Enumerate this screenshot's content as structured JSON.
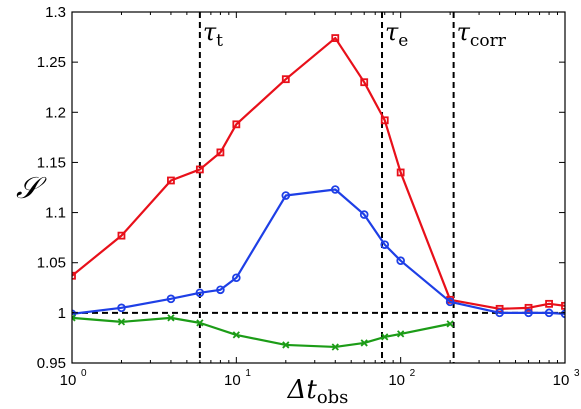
{
  "chart_data": {
    "type": "line",
    "xscale": "log",
    "xlim": [
      1,
      1000
    ],
    "ylim": [
      0.95,
      1.3
    ],
    "xticks": [
      1,
      10,
      100,
      1000
    ],
    "xtick_labels": [
      {
        "base": "10",
        "exp": "0"
      },
      {
        "base": "10",
        "exp": "1"
      },
      {
        "base": "10",
        "exp": "2"
      },
      {
        "base": "10",
        "exp": "3"
      }
    ],
    "yticks": [
      0.95,
      1,
      1.05,
      1.1,
      1.15,
      1.2,
      1.25,
      1.3
    ],
    "ytick_labels": [
      "0.95",
      "1",
      "1.05",
      "1.1",
      "1.15",
      "1.2",
      "1.25",
      "1.3"
    ],
    "xlabel": {
      "main": "Δt",
      "sub": "obs"
    },
    "ylabel": "𝒮",
    "grid": false,
    "series": [
      {
        "color": "#e8101a",
        "marker": "square",
        "x": [
          1,
          2,
          4,
          6,
          8,
          10,
          20,
          40,
          60,
          80,
          100,
          200,
          400,
          600,
          800,
          1000
        ],
        "y": [
          1.037,
          1.077,
          1.132,
          1.143,
          1.16,
          1.188,
          1.233,
          1.274,
          1.23,
          1.192,
          1.14,
          1.013,
          1.004,
          1.005,
          1.009,
          1.007
        ]
      },
      {
        "color": "#1e3fe6",
        "marker": "circle",
        "x": [
          1,
          2,
          4,
          6,
          8,
          10,
          20,
          40,
          60,
          80,
          100,
          200,
          400,
          600,
          800,
          1000
        ],
        "y": [
          0.999,
          1.005,
          1.014,
          1.02,
          1.023,
          1.035,
          1.117,
          1.123,
          1.098,
          1.068,
          1.052,
          1.011,
          1.0,
          1.0,
          1.0,
          0.999
        ]
      },
      {
        "color": "#1c9c17",
        "marker": "x",
        "x": [
          1,
          2,
          4,
          6,
          10,
          20,
          40,
          60,
          80,
          100,
          200
        ],
        "y": [
          0.995,
          0.991,
          0.995,
          0.99,
          0.978,
          0.968,
          0.966,
          0.97,
          0.976,
          0.979,
          0.989
        ]
      }
    ],
    "reference_lines": [
      {
        "orientation": "vertical",
        "x": 6,
        "label_main": "τ",
        "label_sub": "t"
      },
      {
        "orientation": "vertical",
        "x": 77,
        "label_main": "τ",
        "label_sub": "e"
      },
      {
        "orientation": "vertical",
        "x": 210,
        "label_main": "τ",
        "label_sub": "corr"
      },
      {
        "orientation": "horizontal",
        "y": 1
      }
    ]
  }
}
